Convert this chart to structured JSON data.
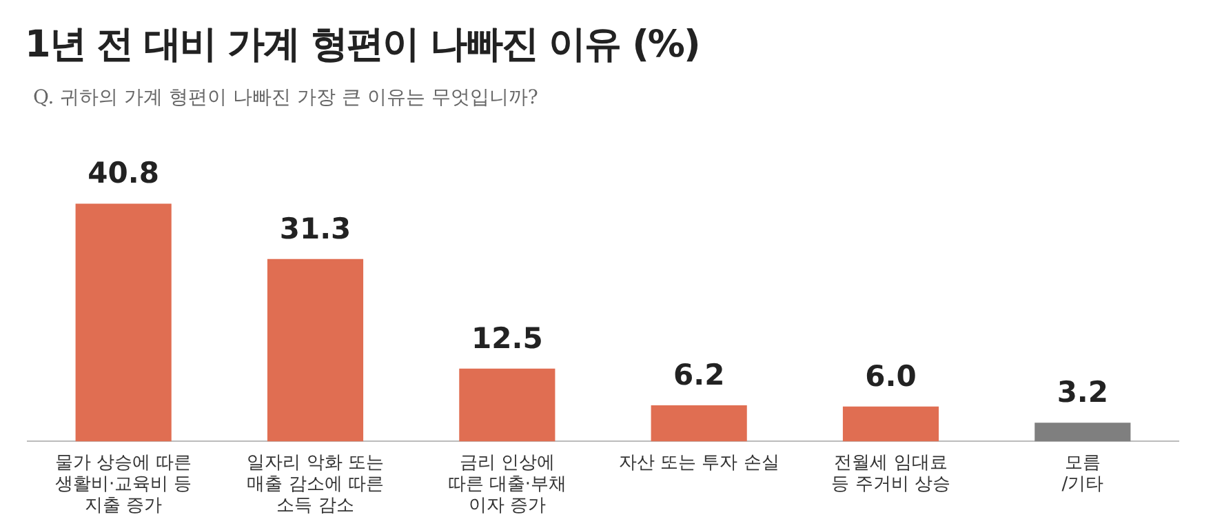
{
  "chart_data": {
    "type": "bar",
    "title": "1년 전 대비 가계 형편이 나빠진 이유 (%)",
    "subtitle": "Q. 귀하의 가계 형편이 나빠진 가장 큰 이유는 무엇입니까?",
    "categories": [
      "물가 상승에 따른\n생활비·교육비 등\n지출 증가",
      "일자리 악화 또는\n매출 감소에 따른\n소득 감소",
      "금리 인상에\n따른 대출·부채\n이자 증가",
      "자산 또는 투자 손실",
      "전월세 임대료\n등 주거비 상승",
      "모름\n/기타"
    ],
    "values": [
      40.8,
      31.3,
      12.5,
      6.2,
      6.0,
      3.2
    ],
    "colors": [
      "#e06e52",
      "#e06e52",
      "#e06e52",
      "#e06e52",
      "#e06e52",
      "#7f7f7f"
    ],
    "value_labels": [
      "40.8",
      "31.3",
      "12.5",
      "6.2",
      "6.0",
      "3.2"
    ],
    "grid": false,
    "legend": false,
    "tick_labels": "x"
  }
}
